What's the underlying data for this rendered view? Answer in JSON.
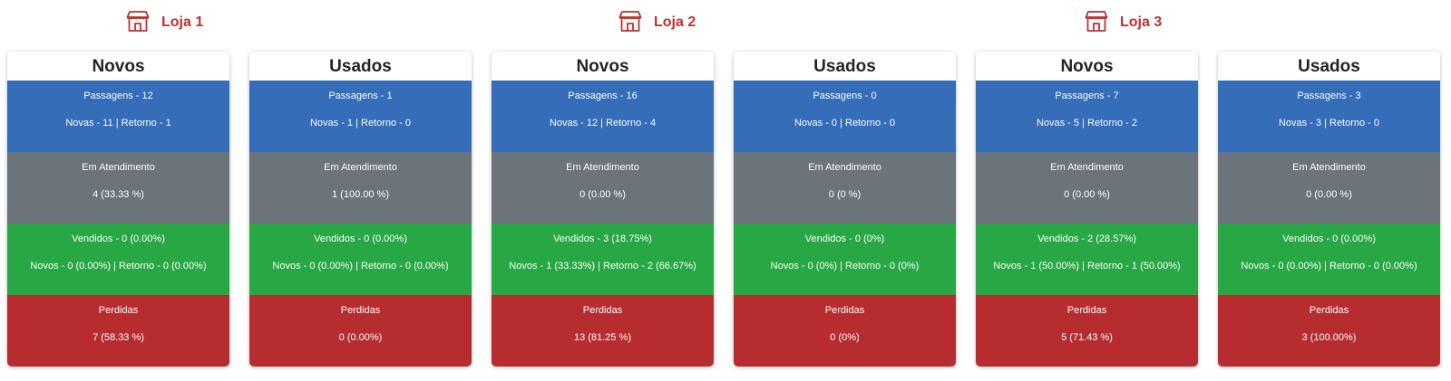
{
  "colors": {
    "accent": "#b83232",
    "passagens": "#356db9",
    "atendimento": "#6b737b",
    "vendidos": "#28a745",
    "perdidas": "#b72d2f"
  },
  "stores": [
    {
      "name": "Loja 1",
      "icon": "store-icon",
      "cards": [
        {
          "title": "Novos",
          "passagens": "Passagens - 12",
          "passagens_detail": "Novas - 11 | Retorno - 1",
          "atendimento": "Em Atendimento",
          "atendimento_value": "4 (33.33 %)",
          "vendidos": "Vendidos - 0 (0.00%)",
          "vendidos_detail": "Novos - 0 (0.00%) | Retorno - 0 (0.00%)",
          "perdidas": "Perdidas",
          "perdidas_value": "7 (58.33 %)"
        },
        {
          "title": "Usados",
          "passagens": "Passagens - 1",
          "passagens_detail": "Novas - 1 | Retorno - 0",
          "atendimento": "Em Atendimento",
          "atendimento_value": "1 (100.00 %)",
          "vendidos": "Vendidos - 0 (0.00%)",
          "vendidos_detail": "Novos - 0 (0.00%) | Retorno - 0 (0.00%)",
          "perdidas": "Perdidas",
          "perdidas_value": "0 (0.00%)"
        }
      ]
    },
    {
      "name": "Loja 2",
      "icon": "store-icon",
      "cards": [
        {
          "title": "Novos",
          "passagens": "Passagens - 16",
          "passagens_detail": "Novas - 12 | Retorno - 4",
          "atendimento": "Em Atendimento",
          "atendimento_value": "0 (0.00 %)",
          "vendidos": "Vendidos - 3 (18.75%)",
          "vendidos_detail": "Novos - 1 (33.33%) | Retorno - 2 (66.67%)",
          "perdidas": "Perdidas",
          "perdidas_value": "13 (81.25 %)"
        },
        {
          "title": "Usados",
          "passagens": "Passagens - 0",
          "passagens_detail": "Novas - 0 | Retorno - 0",
          "atendimento": "Em Atendimento",
          "atendimento_value": "0 (0 %)",
          "vendidos": "Vendidos - 0 (0%)",
          "vendidos_detail": "Novos - 0 (0%) | Retorno - 0 (0%)",
          "perdidas": "Perdidas",
          "perdidas_value": "0 (0%)"
        }
      ]
    },
    {
      "name": "Loja 3",
      "icon": "store-icon",
      "cards": [
        {
          "title": "Novos",
          "passagens": "Passagens - 7",
          "passagens_detail": "Novas - 5 | Retorno - 2",
          "atendimento": "Em Atendimento",
          "atendimento_value": "0 (0.00 %)",
          "vendidos": "Vendidos - 2 (28.57%)",
          "vendidos_detail": "Novos - 1 (50.00%) | Retorno - 1 (50.00%)",
          "perdidas": "Perdidas",
          "perdidas_value": "5 (71.43 %)"
        },
        {
          "title": "Usados",
          "passagens": "Passagens - 3",
          "passagens_detail": "Novas - 3 | Retorno - 0",
          "atendimento": "Em Atendimento",
          "atendimento_value": "0 (0.00 %)",
          "vendidos": "Vendidos - 0 (0.00%)",
          "vendidos_detail": "Novos - 0 (0.00%) | Retorno - 0 (0.00%)",
          "perdidas": "Perdidas",
          "perdidas_value": "3 (100.00%)"
        }
      ]
    }
  ]
}
